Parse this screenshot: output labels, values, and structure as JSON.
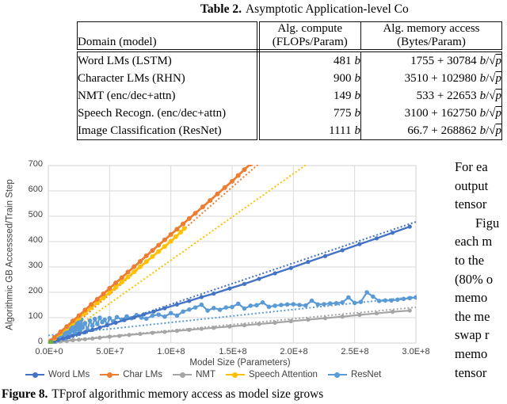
{
  "table": {
    "title_bold": "Table 2.",
    "title_rest": "Asymptotic Application-level Co",
    "headers": {
      "domain": "Domain (model)",
      "compute_line1": "Alg. compute",
      "compute_line2": "(FLOPs/Param)",
      "mem_line1": "Alg. memory access",
      "mem_line2": "(Bytes/Param)"
    },
    "unit_b": "b",
    "radical": "/√",
    "sqrt_var": "p",
    "rows": [
      {
        "domain": "Word LMs (LSTM)",
        "compute": "481",
        "mem": "1755 + 30784"
      },
      {
        "domain": "Character LMs (RHN)",
        "compute": "900",
        "mem": "3510 + 102980"
      },
      {
        "domain": "NMT (enc/dec+attn)",
        "compute": "149",
        "mem": "533 + 22653"
      },
      {
        "domain": "Speech Recogn. (enc/dec+attn)",
        "compute": "775",
        "mem": "3100 + 162750"
      },
      {
        "domain": "Image Classification (ResNet)",
        "compute": "1111",
        "mem": "66.7 + 268862"
      }
    ]
  },
  "figure": {
    "caption_bold": "Figure 8.",
    "caption_rest": "TFprof algorithmic memory access as model size grows"
  },
  "right_column": {
    "lines": [
      "For ea",
      "output",
      "tensor",
      "Figu",
      "each m",
      "to the",
      "(80% o",
      "memo",
      "the me",
      "swap r",
      "memo",
      "tensor"
    ]
  },
  "chart_data": {
    "type": "line",
    "title": "",
    "xlabel": "Model Size (Parameters)",
    "ylabel": "Algorithmic GB Accesssed/Train Step",
    "x_units": "parameters (series x values in millions)",
    "xlim": [
      0,
      300000000
    ],
    "ylim": [
      0,
      700
    ],
    "x_ticks": [
      "0.0E+0",
      "5.0E+7",
      "1.0E+8",
      "1.5E+8",
      "2.0E+8",
      "2.5E+8",
      "3.0E+8"
    ],
    "y_ticks": [
      0,
      100,
      200,
      300,
      400,
      500,
      600,
      700
    ],
    "grid": true,
    "grid_color": "#D9D9D9",
    "legend_position": "bottom",
    "draw_order": [
      2,
      4,
      0,
      3,
      1
    ],
    "series": [
      {
        "name": "Word LMs",
        "color": "#4472C4",
        "width": 2.4,
        "marker_r": 2.6,
        "points": [
          [
            2,
            3
          ],
          [
            5,
            8
          ],
          [
            8,
            12
          ],
          [
            12,
            18
          ],
          [
            16,
            23
          ],
          [
            20,
            29
          ],
          [
            25,
            36
          ],
          [
            30,
            43
          ],
          [
            36,
            52
          ],
          [
            42,
            61
          ],
          [
            48,
            70
          ],
          [
            55,
            80
          ],
          [
            62,
            90
          ],
          [
            70,
            101
          ],
          [
            78,
            113
          ],
          [
            86,
            124
          ],
          [
            95,
            137
          ],
          [
            105,
            152
          ],
          [
            115,
            166
          ],
          [
            125,
            181
          ],
          [
            135,
            195
          ],
          [
            148,
            215
          ],
          [
            160,
            233
          ],
          [
            172,
            253
          ],
          [
            185,
            275
          ],
          [
            198,
            296
          ],
          [
            212,
            320
          ],
          [
            226,
            343
          ],
          [
            240,
            366
          ],
          [
            254,
            390
          ],
          [
            268,
            413
          ],
          [
            281,
            435
          ],
          [
            295,
            459
          ]
        ],
        "trend": [
          [
            0,
            -10
          ],
          [
            300,
            478
          ]
        ]
      },
      {
        "name": "Char LMs",
        "color": "#ED7D31",
        "width": 2.8,
        "marker_r": 3,
        "points": [
          [
            2,
            9
          ],
          [
            5,
            22
          ],
          [
            10,
            44
          ],
          [
            15,
            65
          ],
          [
            20,
            87
          ],
          [
            25,
            108
          ],
          [
            30,
            130
          ],
          [
            35,
            152
          ],
          [
            40,
            173
          ],
          [
            45,
            194
          ],
          [
            50,
            216
          ],
          [
            55,
            237
          ],
          [
            60,
            258
          ],
          [
            65,
            280
          ],
          [
            70,
            301
          ],
          [
            75,
            322
          ],
          [
            80,
            344
          ],
          [
            85,
            365
          ],
          [
            90,
            386
          ],
          [
            95,
            407
          ],
          [
            100,
            428
          ],
          [
            105,
            449
          ],
          [
            110,
            470
          ],
          [
            115,
            491
          ],
          [
            120,
            512
          ],
          [
            126,
            537
          ],
          [
            132,
            562
          ],
          [
            138,
            588
          ],
          [
            144,
            613
          ],
          [
            150,
            638
          ],
          [
            155,
            661
          ],
          [
            160,
            684
          ],
          [
            165,
            706
          ]
        ],
        "trend": [
          [
            0,
            -20
          ],
          [
            176,
            725
          ]
        ]
      },
      {
        "name": "NMT",
        "color": "#A5A5A5",
        "width": 2.2,
        "marker_r": 2.6,
        "points": [
          [
            3,
            2
          ],
          [
            6,
            4
          ],
          [
            10,
            6
          ],
          [
            15,
            8
          ],
          [
            20,
            11
          ],
          [
            25,
            13
          ],
          [
            30,
            15
          ],
          [
            36,
            18
          ],
          [
            42,
            21
          ],
          [
            50,
            25
          ],
          [
            58,
            28
          ],
          [
            66,
            32
          ],
          [
            75,
            36
          ],
          [
            85,
            40
          ],
          [
            95,
            44
          ],
          [
            105,
            48
          ],
          [
            115,
            52
          ],
          [
            125,
            56
          ],
          [
            135,
            60
          ],
          [
            148,
            65
          ],
          [
            160,
            70
          ],
          [
            172,
            75
          ],
          [
            185,
            80
          ],
          [
            198,
            86
          ],
          [
            212,
            92
          ],
          [
            226,
            98
          ],
          [
            240,
            104
          ],
          [
            254,
            111
          ],
          [
            268,
            117
          ],
          [
            281,
            123
          ],
          [
            295,
            128
          ]
        ],
        "trend": [
          [
            0,
            4
          ],
          [
            300,
            141
          ]
        ]
      },
      {
        "name": "Speech Attention",
        "color": "#FFC000",
        "width": 2.8,
        "marker_r": 3,
        "points": [
          [
            2,
            7
          ],
          [
            5,
            18
          ],
          [
            10,
            38
          ],
          [
            15,
            58
          ],
          [
            20,
            78
          ],
          [
            25,
            98
          ],
          [
            30,
            118
          ],
          [
            35,
            139
          ],
          [
            40,
            159
          ],
          [
            45,
            179
          ],
          [
            50,
            199
          ],
          [
            55,
            219
          ],
          [
            60,
            240
          ],
          [
            65,
            260
          ],
          [
            70,
            281
          ],
          [
            75,
            301
          ],
          [
            80,
            321
          ],
          [
            85,
            341
          ],
          [
            90,
            361
          ],
          [
            95,
            381
          ],
          [
            100,
            401
          ],
          [
            104,
            419
          ],
          [
            108,
            437
          ],
          [
            111,
            452
          ]
        ],
        "trend": [
          [
            0,
            -15
          ],
          [
            213,
            712
          ]
        ]
      },
      {
        "name": "ResNet",
        "color": "#5B9BD5",
        "width": 2.2,
        "marker_r": 2.8,
        "points": [
          [
            2,
            3
          ],
          [
            3,
            8
          ],
          [
            4,
            14
          ],
          [
            5,
            5
          ],
          [
            6,
            20
          ],
          [
            7,
            28
          ],
          [
            8,
            12
          ],
          [
            9,
            35
          ],
          [
            10,
            22
          ],
          [
            11,
            42
          ],
          [
            12,
            30
          ],
          [
            13,
            50
          ],
          [
            14,
            18
          ],
          [
            15,
            58
          ],
          [
            16,
            38
          ],
          [
            17,
            64
          ],
          [
            18,
            28
          ],
          [
            19,
            70
          ],
          [
            20,
            48
          ],
          [
            21,
            76
          ],
          [
            22,
            40
          ],
          [
            23,
            82
          ],
          [
            24,
            55
          ],
          [
            25,
            88
          ],
          [
            26,
            46
          ],
          [
            27,
            92
          ],
          [
            28,
            60
          ],
          [
            30,
            78
          ],
          [
            32,
            52
          ],
          [
            34,
            88
          ],
          [
            36,
            68
          ],
          [
            38,
            95
          ],
          [
            40,
            75
          ],
          [
            42,
            100
          ],
          [
            44,
            82
          ],
          [
            46,
            92
          ],
          [
            48,
            72
          ],
          [
            50,
            98
          ],
          [
            53,
            85
          ],
          [
            56,
            102
          ],
          [
            60,
            92
          ],
          [
            64,
            105
          ],
          [
            68,
            98
          ],
          [
            72,
            110
          ],
          [
            76,
            100
          ],
          [
            80,
            96
          ],
          [
            85,
            108
          ],
          [
            90,
            112
          ],
          [
            95,
            104
          ],
          [
            100,
            118
          ],
          [
            105,
            108
          ],
          [
            110,
            124
          ],
          [
            115,
            132
          ],
          [
            120,
            140
          ],
          [
            125,
            151
          ],
          [
            130,
            128
          ],
          [
            135,
            138
          ],
          [
            140,
            131
          ],
          [
            145,
            140
          ],
          [
            150,
            142
          ],
          [
            155,
            155
          ],
          [
            160,
            136
          ],
          [
            165,
            147
          ],
          [
            170,
            149
          ],
          [
            175,
            160
          ],
          [
            180,
            143
          ],
          [
            185,
            147
          ],
          [
            190,
            150
          ],
          [
            195,
            152
          ],
          [
            200,
            153
          ],
          [
            205,
            150
          ],
          [
            210,
            148
          ],
          [
            215,
            167
          ],
          [
            220,
            152
          ],
          [
            225,
            153
          ],
          [
            230,
            156
          ],
          [
            235,
            157
          ],
          [
            240,
            160
          ],
          [
            245,
            180
          ],
          [
            250,
            158
          ],
          [
            255,
            162
          ],
          [
            260,
            200
          ],
          [
            265,
            183
          ],
          [
            270,
            166
          ],
          [
            275,
            168
          ],
          [
            280,
            168
          ],
          [
            285,
            171
          ],
          [
            290,
            174
          ],
          [
            295,
            177
          ],
          [
            300,
            180
          ]
        ],
        "trend": [
          [
            0,
            30
          ],
          [
            300,
            183
          ]
        ]
      }
    ],
    "extra_points": {
      "name": "origin-point",
      "color": "#70AD47",
      "points": [
        [
          2,
          2
        ]
      ]
    }
  }
}
